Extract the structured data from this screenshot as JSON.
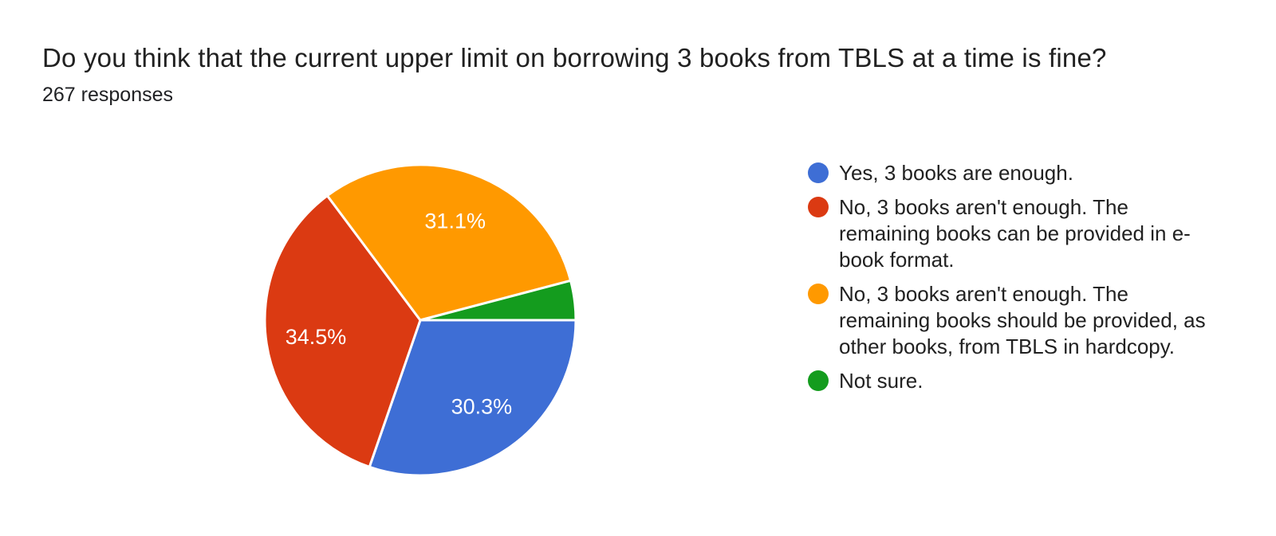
{
  "chart_data": {
    "type": "pie",
    "title": "Do you think that the current upper limit on borrowing 3 books from TBLS at a time is fine?",
    "subtitle": "267 responses",
    "total_responses": 267,
    "legend_position": "right",
    "start_angle_deg_clockwise_from_3_oclock": 0,
    "direction": "clockwise",
    "slice_border_color": "#ffffff",
    "label_text_color": "#ffffff",
    "slices": [
      {
        "label": "Yes, 3 books are enough.",
        "percent": 30.3,
        "display_percent": "30.3%",
        "color": "#3E6ED5"
      },
      {
        "label": "No, 3 books aren't enough. The remaining books can be provided in e-book format.",
        "percent": 34.5,
        "display_percent": "34.5%",
        "color": "#DB3A12"
      },
      {
        "label": "No, 3 books aren't enough. The remaining books should be provided, as other books, from TBLS in hardcopy.",
        "percent": 31.1,
        "display_percent": "31.1%",
        "color": "#FF9900"
      },
      {
        "label": "Not sure.",
        "percent": 4.1,
        "display_percent": "",
        "color": "#149C1E"
      }
    ]
  }
}
